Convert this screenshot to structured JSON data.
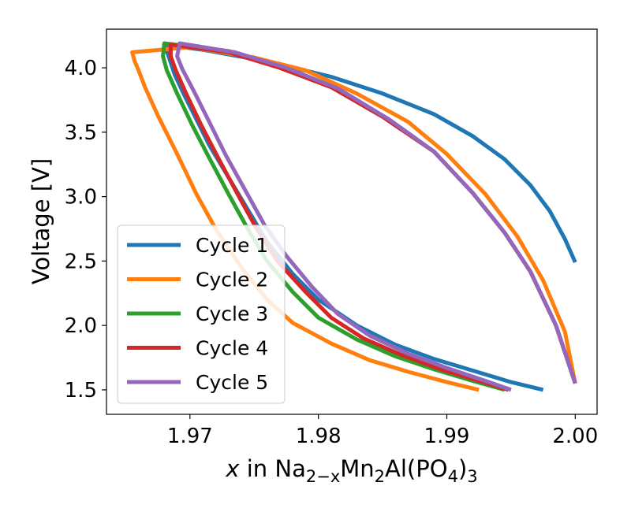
{
  "chart_data": {
    "type": "line",
    "title": "",
    "xlabel": {
      "italic": "x",
      "prefix": " in Na",
      "sub1": "2−x",
      "mid1": "Mn",
      "sub2": "2",
      "mid2": "Al(PO",
      "sub3": "4",
      "mid3": ")",
      "sub4": "3"
    },
    "ylabel": "Voltage [V]",
    "xlim": [
      1.9635,
      2.0017
    ],
    "ylim": [
      1.31,
      4.3
    ],
    "xticks": [
      1.97,
      1.98,
      1.99,
      2.0
    ],
    "xtick_labels": [
      "1.97",
      "1.98",
      "1.99",
      "2.00"
    ],
    "yticks": [
      1.5,
      2.0,
      2.5,
      3.0,
      3.5,
      4.0
    ],
    "ytick_labels": [
      "1.5",
      "2.0",
      "2.5",
      "3.0",
      "3.5",
      "4.0"
    ],
    "grid": false,
    "legend_position": "lower-left",
    "series": [
      {
        "name": "Cycle 1",
        "color": "#1f77b4",
        "x": [
          1.9975,
          1.995,
          1.992,
          1.989,
          1.986,
          1.983,
          1.98,
          1.978,
          1.976,
          1.9745,
          1.973,
          1.9715,
          1.9705,
          1.9695,
          1.9688,
          1.9683,
          1.968,
          1.971,
          1.976,
          1.981,
          1.985,
          1.989,
          1.992,
          1.9945,
          1.9965,
          1.998,
          1.9992,
          2.0
        ],
        "y": [
          1.5,
          1.56,
          1.65,
          1.74,
          1.85,
          2.0,
          2.2,
          2.4,
          2.65,
          2.9,
          3.15,
          3.4,
          3.6,
          3.8,
          3.95,
          4.1,
          4.18,
          4.14,
          4.05,
          3.93,
          3.8,
          3.64,
          3.47,
          3.29,
          3.09,
          2.89,
          2.67,
          2.49
        ]
      },
      {
        "name": "Cycle 2",
        "color": "#ff7f0e",
        "x": [
          1.9925,
          1.99,
          1.987,
          1.984,
          1.981,
          1.978,
          1.976,
          1.974,
          1.972,
          1.9705,
          1.969,
          1.9675,
          1.9665,
          1.966,
          1.9657,
          1.9655,
          1.97,
          1.975,
          1.979,
          1.983,
          1.987,
          1.99,
          1.993,
          1.9955,
          1.9975,
          1.9992,
          2.0
        ],
        "y": [
          1.5,
          1.56,
          1.64,
          1.73,
          1.86,
          2.02,
          2.2,
          2.45,
          2.75,
          3.02,
          3.33,
          3.63,
          3.85,
          3.98,
          4.05,
          4.12,
          4.16,
          4.08,
          3.98,
          3.8,
          3.58,
          3.33,
          3.02,
          2.69,
          2.35,
          1.95,
          1.55
        ]
      },
      {
        "name": "Cycle 3",
        "color": "#2ca02c",
        "x": [
          1.9945,
          1.992,
          1.989,
          1.986,
          1.983,
          1.98,
          1.978,
          1.976,
          1.9745,
          1.973,
          1.9715,
          1.9702,
          1.969,
          1.9682,
          1.9679,
          1.968,
          1.973,
          1.977,
          1.981,
          1.985,
          1.989,
          1.992,
          1.9945,
          1.9965,
          1.9985,
          2.0
        ],
        "y": [
          1.5,
          1.57,
          1.66,
          1.76,
          1.89,
          2.06,
          2.26,
          2.5,
          2.75,
          3.02,
          3.3,
          3.55,
          3.8,
          3.98,
          4.09,
          4.19,
          4.13,
          4.0,
          3.85,
          3.62,
          3.35,
          3.03,
          2.72,
          2.42,
          2.0,
          1.55
        ]
      },
      {
        "name": "Cycle 4",
        "color": "#d62728",
        "x": [
          1.9948,
          1.9925,
          1.9895,
          1.9865,
          1.9835,
          1.981,
          1.979,
          1.9768,
          1.9752,
          1.9737,
          1.9722,
          1.9709,
          1.9697,
          1.9689,
          1.9685,
          1.9685,
          1.973,
          1.977,
          1.981,
          1.985,
          1.989,
          1.992,
          1.9945,
          1.9965,
          1.9985,
          2.0
        ],
        "y": [
          1.5,
          1.57,
          1.66,
          1.77,
          1.9,
          2.06,
          2.26,
          2.5,
          2.75,
          3.02,
          3.3,
          3.55,
          3.8,
          3.98,
          4.09,
          4.18,
          4.12,
          4.0,
          3.85,
          3.62,
          3.35,
          3.03,
          2.72,
          2.42,
          2.0,
          1.55
        ]
      },
      {
        "name": "Cycle 5",
        "color": "#9467bd",
        "x": [
          1.995,
          1.993,
          1.99,
          1.987,
          1.984,
          1.9815,
          1.9795,
          1.9775,
          1.9758,
          1.9743,
          1.9728,
          1.9715,
          1.9703,
          1.9694,
          1.969,
          1.9692,
          1.9735,
          1.9775,
          1.9815,
          1.9855,
          1.989,
          1.992,
          1.9945,
          1.9965,
          1.9985,
          2.0
        ],
        "y": [
          1.5,
          1.57,
          1.67,
          1.78,
          1.92,
          2.09,
          2.3,
          2.54,
          2.78,
          3.05,
          3.32,
          3.58,
          3.82,
          3.99,
          4.09,
          4.19,
          4.12,
          4.0,
          3.84,
          3.6,
          3.35,
          3.03,
          2.72,
          2.42,
          2.0,
          1.55
        ]
      }
    ]
  }
}
